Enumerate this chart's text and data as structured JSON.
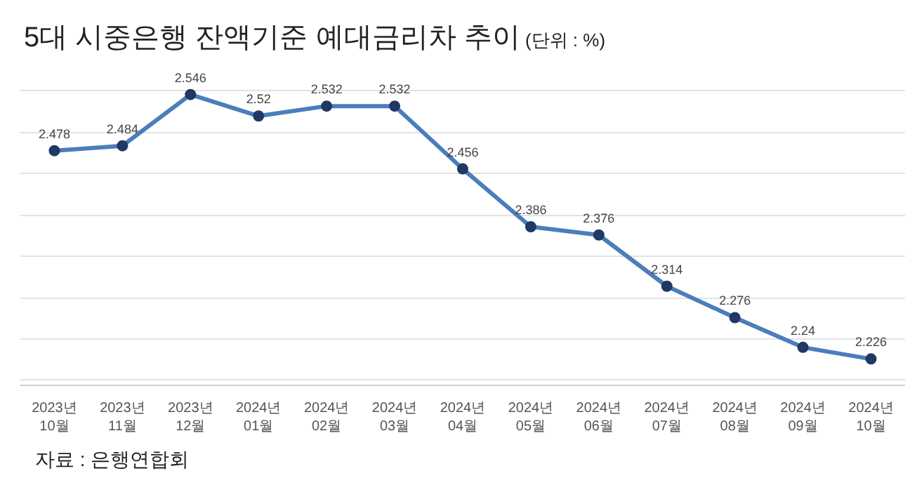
{
  "chart_data": {
    "type": "line",
    "title": "5대 시중은행 잔액기준 예대금리차 추이",
    "subtitle": "(단위 : %)",
    "categories": [
      "2023년10월",
      "2023년11월",
      "2023년12월",
      "2024년01월",
      "2024년02월",
      "2024년03월",
      "2024년04월",
      "2024년05월",
      "2024년06월",
      "2024년07월",
      "2024년08월",
      "2024년09월",
      "2024년10월"
    ],
    "series": [
      {
        "color": "#4a7ebb",
        "values": [
          2.478,
          2.484,
          2.546,
          2.52,
          2.532,
          2.532,
          2.456,
          2.386,
          2.376,
          2.314,
          2.276,
          2.24,
          2.226
        ]
      }
    ],
    "tick_labels": "x",
    "grid": "y",
    "marker": "circle",
    "line_style": "solid",
    "data_labels": true,
    "annotations": [
      "자료 : 은행연합회"
    ]
  }
}
